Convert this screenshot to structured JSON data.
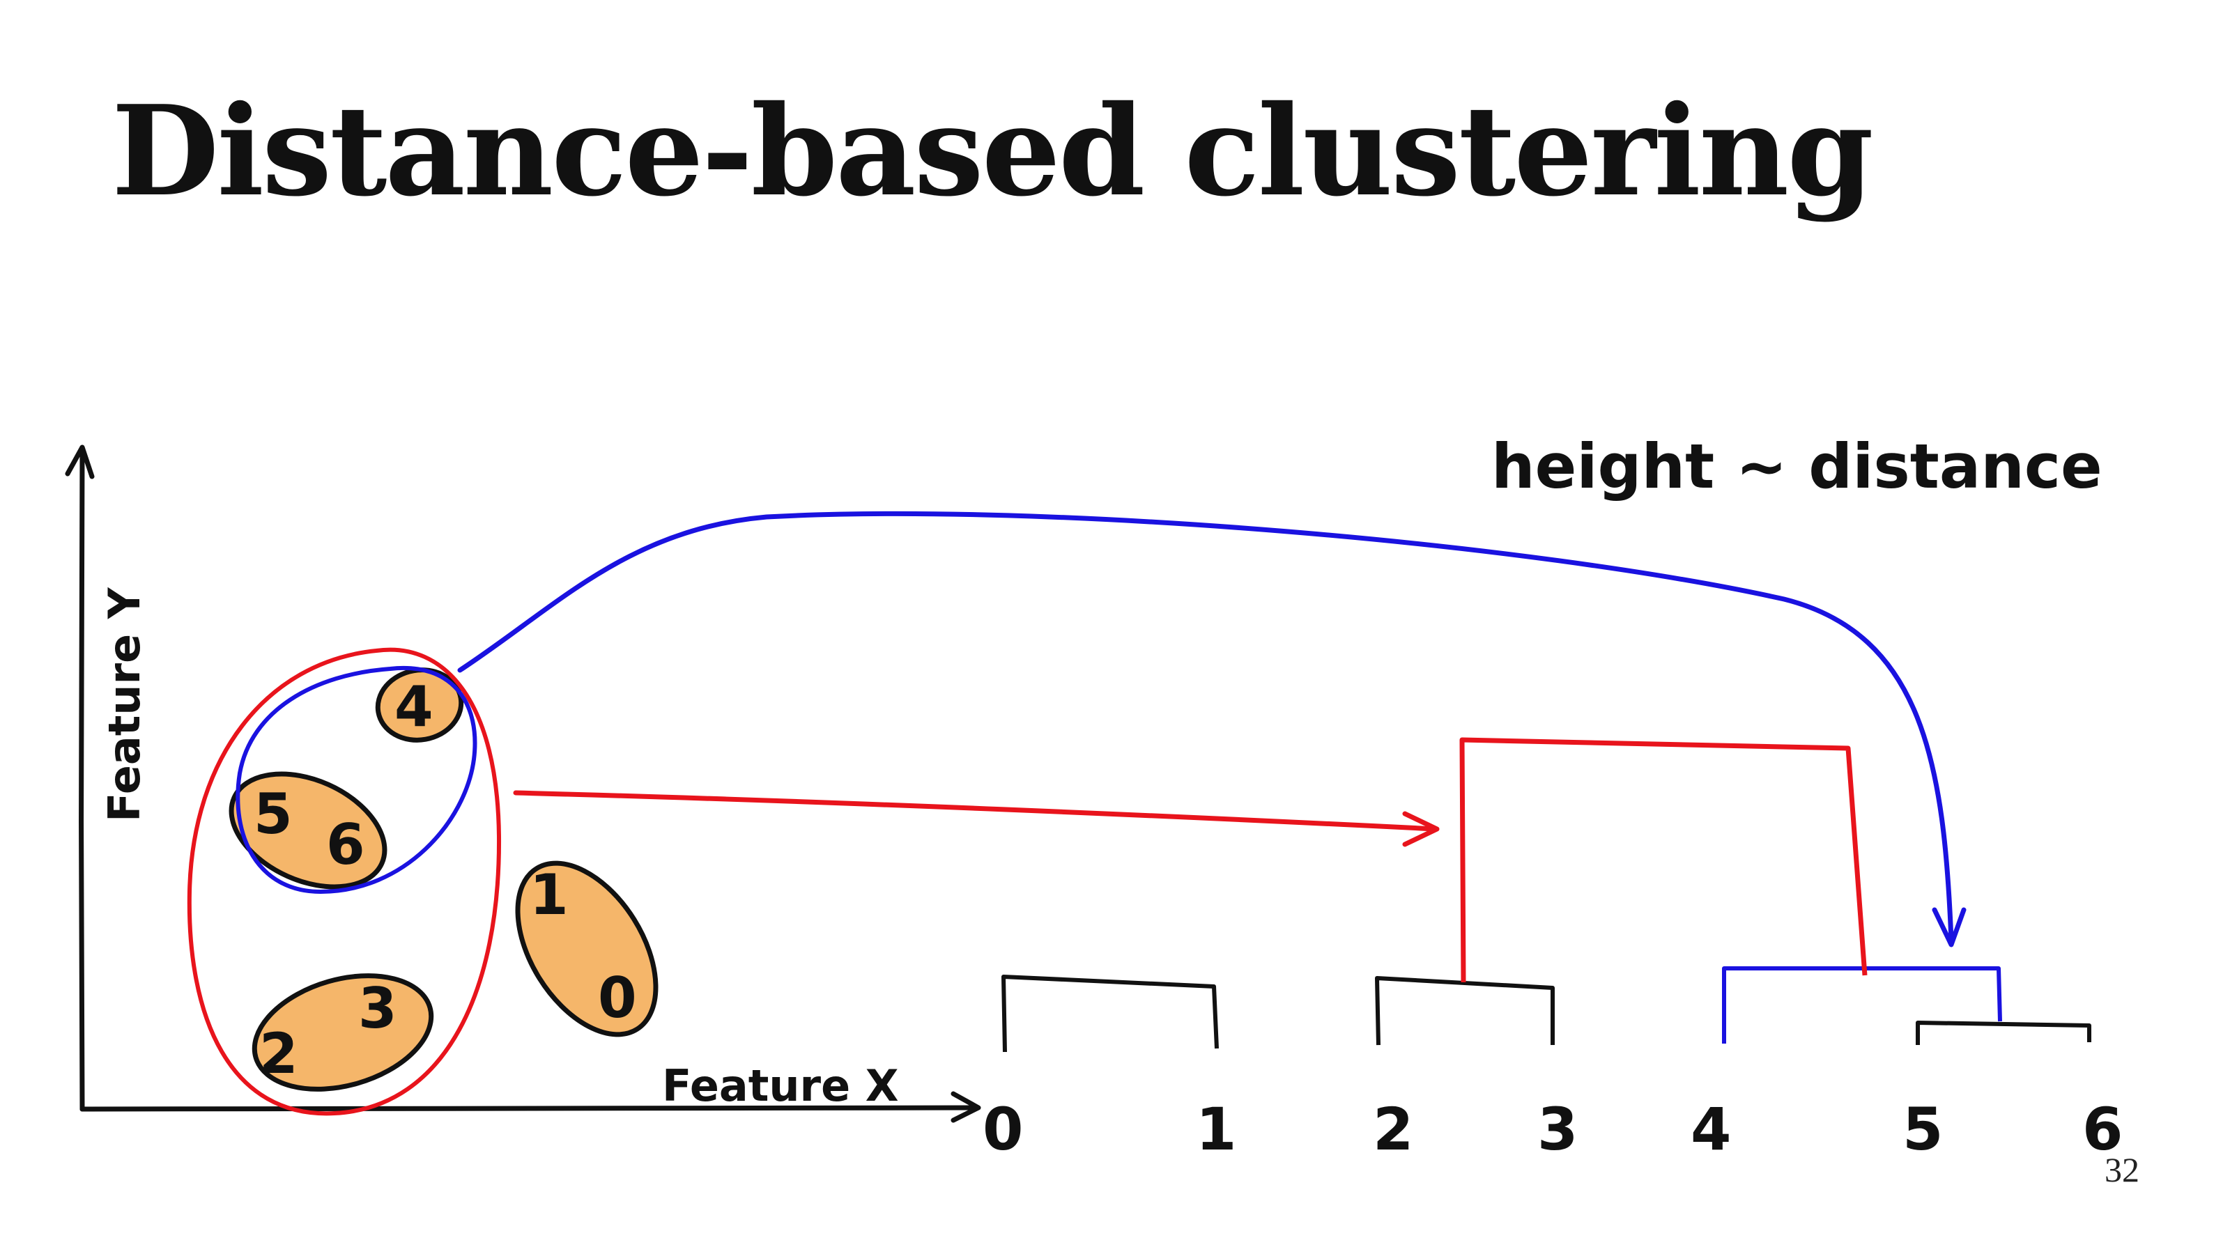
{
  "slide": {
    "title": "Distance-based clustering",
    "page_number": "32"
  },
  "scatter": {
    "x_axis_label": "Feature X",
    "y_axis_label": "Feature Y",
    "clusters": [
      {
        "points": [
          "1",
          "0"
        ]
      },
      {
        "points": [
          "2",
          "3"
        ]
      },
      {
        "points": [
          "5",
          "6"
        ]
      },
      {
        "points": [
          "4"
        ]
      }
    ]
  },
  "dendrogram": {
    "annotation": "height ~ distance",
    "leaf_labels": [
      "0",
      "1",
      "2",
      "3",
      "4",
      "5",
      "6"
    ]
  },
  "colors": {
    "ink": "#111111",
    "red": "#e8141c",
    "blue": "#1a12e0",
    "cluster_fill": "#f5b66a"
  }
}
